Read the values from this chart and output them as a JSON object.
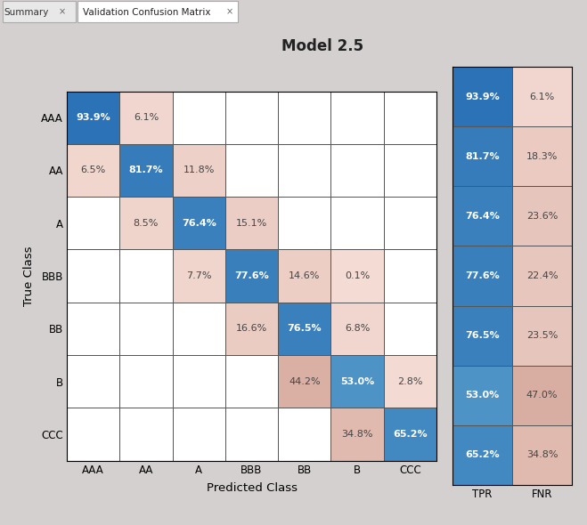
{
  "title": "Model 2.5",
  "classes": [
    "AAA",
    "AA",
    "A",
    "BBB",
    "BB",
    "B",
    "CCC"
  ],
  "xlabel": "Predicted Class",
  "ylabel": "True Class",
  "confusion_matrix": [
    [
      93.9,
      6.1,
      0,
      0,
      0,
      0,
      0
    ],
    [
      6.5,
      81.7,
      11.8,
      0,
      0,
      0,
      0
    ],
    [
      0,
      8.5,
      76.4,
      15.1,
      0,
      0,
      0
    ],
    [
      0,
      0,
      7.7,
      77.6,
      14.6,
      0.1,
      0
    ],
    [
      0,
      0,
      0,
      16.6,
      76.5,
      6.8,
      0
    ],
    [
      0,
      0,
      0,
      0,
      44.2,
      53.0,
      2.8
    ],
    [
      0,
      0,
      0,
      0,
      0,
      34.8,
      65.2
    ]
  ],
  "tpr": [
    93.9,
    81.7,
    76.4,
    77.6,
    76.5,
    53.0,
    65.2
  ],
  "fnr": [
    6.1,
    18.3,
    23.6,
    22.4,
    23.5,
    47.0,
    34.8
  ],
  "tpr_label": "TPR",
  "fnr_label": "FNR",
  "bg_color": "#D4D0D0",
  "grid_color": "#555555",
  "text_white": "#FFFFFF",
  "text_dark": "#444444",
  "tab_bg": "#E8E8E8",
  "tab_active_bg": "#FFFFFF",
  "tab_border": "#AAAAAA"
}
